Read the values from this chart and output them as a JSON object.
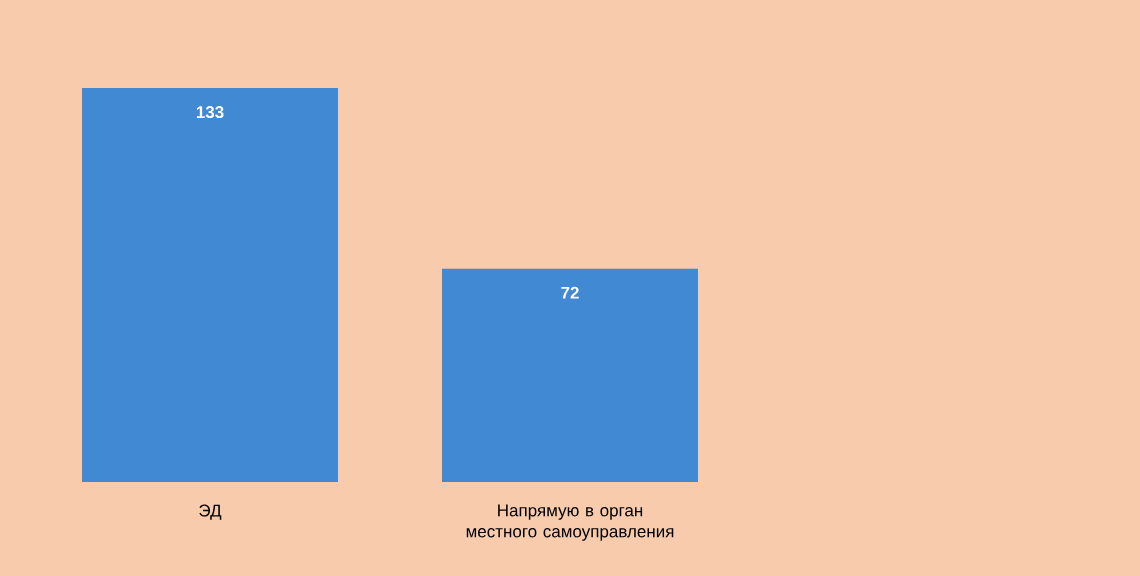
{
  "chart_data": {
    "type": "bar",
    "categories": [
      "ЭД",
      "Напрямую в орган местного самоуправления"
    ],
    "values": [
      133,
      72
    ],
    "color": "#4189d3",
    "data_labels": true
  }
}
